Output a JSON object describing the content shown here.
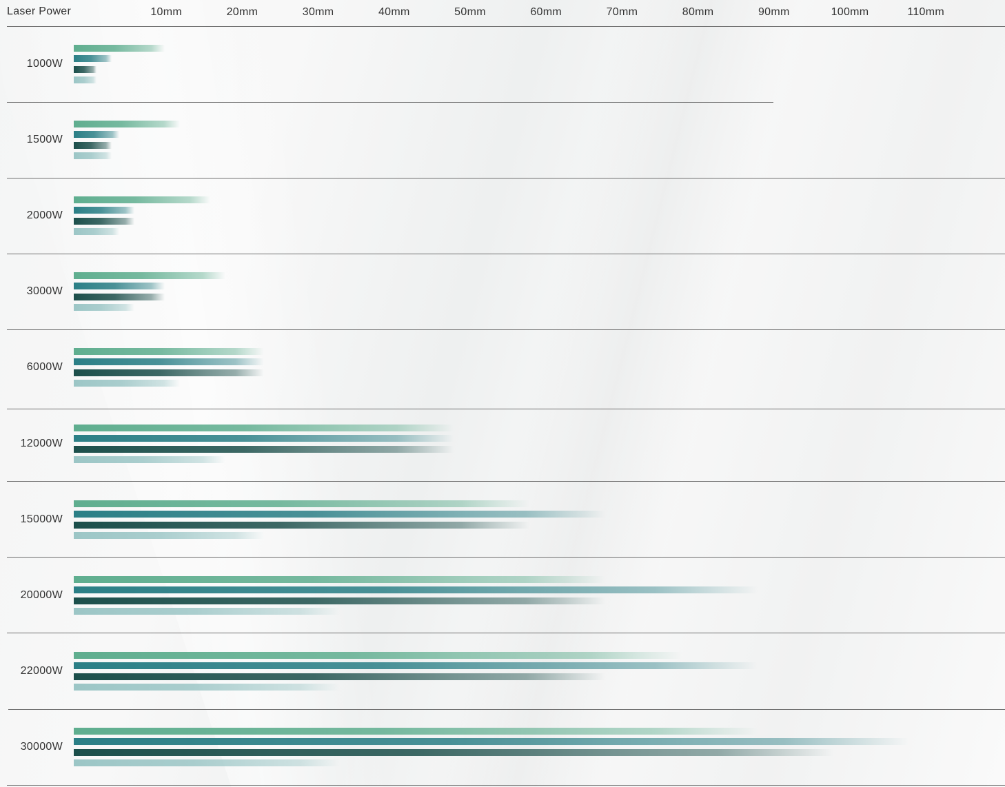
{
  "chart_data": {
    "type": "bar",
    "orientation": "horizontal",
    "title": "",
    "xlabel": "",
    "ylabel": "Laser Power",
    "x_unit": "mm",
    "xlim": [
      0,
      120
    ],
    "ticks": [
      "10mm",
      "20mm",
      "30mm",
      "40mm",
      "50mm",
      "60mm",
      "70mm",
      "80mm",
      "90mm",
      "100mm",
      "110mm"
    ],
    "tick_values": [
      10,
      20,
      30,
      40,
      50,
      60,
      70,
      80,
      90,
      100,
      110
    ],
    "categories": [
      "1000W",
      "1500W",
      "2000W",
      "3000W",
      "6000W",
      "12000W",
      "15000W",
      "20000W",
      "22000W",
      "30000W"
    ],
    "series": [
      {
        "color": "#5fae8f",
        "values": [
          12,
          14,
          18,
          20,
          25,
          50,
          60,
          70,
          80,
          90
        ]
      },
      {
        "color": "#2b7f86",
        "values": [
          5,
          6,
          8,
          12,
          25,
          50,
          70,
          90,
          90,
          110
        ]
      },
      {
        "color": "#1c4f4b",
        "values": [
          3,
          5,
          8,
          12,
          25,
          50,
          60,
          70,
          70,
          100
        ]
      },
      {
        "color": "#9cc6c6",
        "values": [
          3,
          5,
          6,
          8,
          14,
          20,
          25,
          35,
          35,
          35
        ]
      }
    ],
    "grid": false,
    "legend": "none"
  }
}
